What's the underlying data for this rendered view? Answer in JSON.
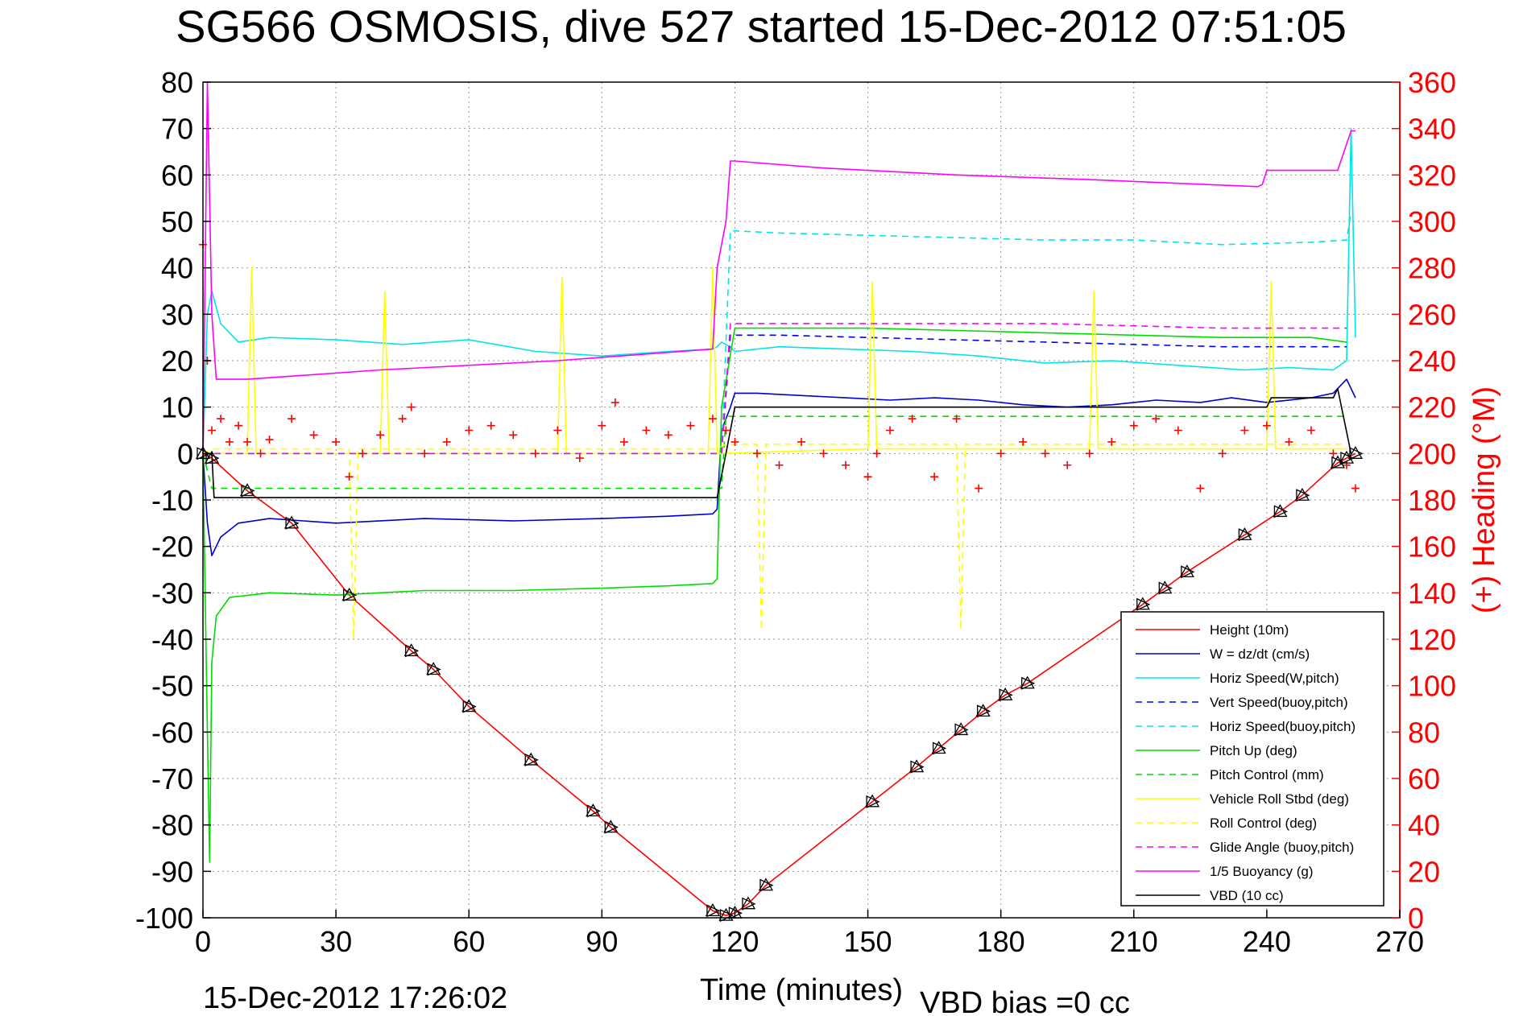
{
  "chart_data": {
    "type": "line",
    "title": "SG566 OSMOSIS, dive 527 started 15-Dec-2012 07:51:05",
    "xlabel": "Time (minutes)",
    "ylabel": "",
    "ylabel_right": "(+) Heading (°M)",
    "xlim": [
      0,
      270
    ],
    "ylim": [
      -100,
      80
    ],
    "ylim_right": [
      0,
      360
    ],
    "x_ticks": [
      "0",
      "30",
      "60",
      "90",
      "120",
      "150",
      "180",
      "210",
      "240",
      "270"
    ],
    "y_ticks": [
      "80",
      "70",
      "60",
      "50",
      "40",
      "30",
      "20",
      "10",
      "0",
      "-10",
      "-20",
      "-30",
      "-40",
      "-50",
      "-60",
      "-70",
      "-80",
      "-90",
      "-100"
    ],
    "y_ticks_right": [
      "360",
      "340",
      "320",
      "300",
      "280",
      "260",
      "240",
      "220",
      "200",
      "180",
      "160",
      "140",
      "120",
      "100",
      "80",
      "60",
      "40",
      "20",
      "0"
    ],
    "grid": true,
    "legend_position": "bottom-right",
    "footer_left": "15-Dec-2012 17:26:02",
    "footer_right": "VBD bias =0 cc",
    "series": [
      {
        "name": "Height (10m)",
        "color": "#ff0000",
        "style": "solid",
        "x": [
          0,
          2,
          10,
          20,
          33,
          47,
          52,
          60,
          74,
          88,
          92,
          115,
          118,
          120,
          123,
          127,
          151,
          161,
          166,
          171,
          176,
          181,
          186,
          212,
          217,
          222,
          235,
          243,
          248,
          256,
          258,
          260
        ],
        "y": [
          0,
          -1,
          -8,
          -15,
          -30.5,
          -42.5,
          -46.5,
          -54.5,
          -66,
          -77,
          -80.5,
          -98.5,
          -99.5,
          -99,
          -97,
          -93,
          -75,
          -67.5,
          -63.5,
          -59.5,
          -55.5,
          -52,
          -49.5,
          -32.5,
          -29,
          -25.5,
          -17.5,
          -12.5,
          -9,
          -2,
          -1,
          0
        ]
      },
      {
        "name": "W = dz/dt (cm/s)",
        "color": "#0000cc",
        "style": "solid",
        "x": [
          0,
          1,
          2,
          4,
          8,
          15,
          30,
          50,
          70,
          90,
          105,
          115,
          116,
          117,
          119,
          120,
          125,
          135,
          145,
          155,
          165,
          175,
          185,
          195,
          205,
          215,
          225,
          232,
          240,
          250,
          255,
          258,
          260
        ],
        "y": [
          0,
          -15,
          -22,
          -18,
          -15,
          -14,
          -15,
          -14,
          -14.5,
          -14,
          -13.5,
          -13,
          -12,
          5,
          10,
          13,
          13,
          12.5,
          12,
          11.5,
          12,
          11.5,
          10.5,
          10,
          10.5,
          11.5,
          11,
          12,
          11,
          12,
          13,
          16,
          12
        ]
      },
      {
        "name": "Horiz Speed(W,pitch)",
        "color": "#00e6e6",
        "style": "solid",
        "x": [
          0,
          1,
          2,
          4,
          8,
          15,
          30,
          45,
          60,
          75,
          90,
          105,
          115,
          116,
          117,
          119,
          120,
          130,
          145,
          160,
          175,
          190,
          205,
          220,
          235,
          245,
          255,
          258,
          259,
          260
        ],
        "y": [
          0,
          30,
          35,
          28,
          24,
          25,
          24.5,
          23.5,
          24.5,
          22,
          21,
          22,
          22.5,
          23,
          24,
          23,
          22,
          23,
          22.5,
          22,
          21,
          19.5,
          20,
          19,
          18,
          18.5,
          18,
          20,
          70,
          25
        ]
      },
      {
        "name": "Vert Speed(buoy,pitch)",
        "color": "#0000ff",
        "style": "dashed",
        "x": [
          0,
          2,
          117,
          119,
          130,
          150,
          170,
          190,
          210,
          230,
          250,
          258
        ],
        "y": [
          0,
          0,
          0,
          25.5,
          25.5,
          25,
          24.5,
          24,
          23.5,
          23,
          23,
          23
        ]
      },
      {
        "name": "Horiz Speed(buoy,pitch)",
        "color": "#00e6e6",
        "style": "dashed",
        "x": [
          0,
          2,
          117,
          119,
          130,
          150,
          170,
          190,
          210,
          230,
          250,
          258,
          259
        ],
        "y": [
          0,
          0,
          0,
          48,
          47.5,
          47,
          46.5,
          46,
          46,
          45,
          45.5,
          46,
          52
        ]
      },
      {
        "name": "Pitch Up (deg)",
        "color": "#00dd00",
        "style": "solid",
        "x": [
          0,
          1,
          1.5,
          2,
          3,
          6,
          15,
          30,
          50,
          70,
          90,
          105,
          115,
          116,
          117,
          120,
          130,
          150,
          170,
          190,
          210,
          230,
          250,
          258
        ],
        "y": [
          0,
          -60,
          -88,
          -45,
          -35,
          -31,
          -30,
          -30.5,
          -29.5,
          -29.5,
          -29,
          -28.5,
          -28,
          -27,
          10,
          27,
          27,
          27,
          26.5,
          26,
          25.5,
          25,
          25,
          24
        ]
      },
      {
        "name": "Pitch Control (mm)",
        "color": "#00dd00",
        "style": "dashed",
        "x": [
          0,
          2,
          117,
          118,
          258
        ],
        "y": [
          0,
          -7.5,
          -7.5,
          8,
          8
        ]
      },
      {
        "name": "Vehicle Roll Stbd (deg)",
        "color": "#ffff00",
        "style": "solid",
        "x": [
          0,
          2,
          10,
          11,
          12,
          40,
          41,
          42,
          80,
          81,
          82,
          114,
          115,
          116,
          150,
          151,
          152,
          200,
          201,
          202,
          240,
          241,
          242,
          258
        ],
        "y": [
          0,
          0,
          0,
          40,
          0,
          0,
          35,
          0,
          0,
          38,
          0,
          0,
          40,
          0,
          1,
          37,
          1,
          1,
          35,
          1,
          1,
          37,
          1,
          1
        ]
      },
      {
        "name": "Roll Control (deg)",
        "color": "#ffff00",
        "style": "dashed",
        "x": [
          0,
          2,
          33,
          34,
          35,
          116,
          118,
          125,
          126,
          127,
          170,
          171,
          172,
          258
        ],
        "y": [
          0,
          1,
          1,
          -40,
          1,
          1,
          2,
          2,
          -38,
          2,
          2,
          -38,
          2,
          2
        ]
      },
      {
        "name": "Glide Angle (buoy,pitch)",
        "color": "#ff00ff",
        "style": "dashed",
        "x": [
          0,
          2,
          117,
          119,
          150,
          190,
          230,
          258
        ],
        "y": [
          0,
          0,
          0,
          28,
          28,
          28,
          27,
          27
        ]
      },
      {
        "name": "1/5 Buoyancy (g)",
        "color": "#ff00ff",
        "style": "solid",
        "x": [
          0,
          1,
          2,
          3,
          10,
          40,
          80,
          115,
          116,
          118,
          119,
          120,
          140,
          170,
          200,
          238,
          239,
          240,
          255,
          256,
          259,
          260
        ],
        "y": [
          0,
          80,
          30,
          16,
          16,
          18,
          20,
          22.5,
          40,
          50,
          63,
          63,
          61.5,
          60,
          59,
          57.5,
          58,
          61,
          61,
          61,
          69.5,
          69.5
        ]
      },
      {
        "name": "VBD (10 cc)",
        "color": "#000000",
        "style": "solid",
        "x": [
          0,
          2,
          2.5,
          116,
          118,
          120,
          240,
          241,
          255,
          256,
          259
        ],
        "y": [
          0,
          0,
          -9.5,
          -9.5,
          0,
          10,
          10,
          12,
          12,
          14,
          0
        ]
      }
    ],
    "heading": {
      "name": "(+) Heading (°M)",
      "color": "#ff0000",
      "marker": "+",
      "x": [
        0,
        1,
        2,
        4,
        6,
        8,
        10,
        13,
        15,
        20,
        25,
        30,
        33,
        36,
        40,
        45,
        47,
        50,
        55,
        60,
        65,
        70,
        75,
        80,
        85,
        90,
        93,
        95,
        100,
        105,
        110,
        115,
        118,
        120,
        125,
        130,
        135,
        140,
        145,
        150,
        152,
        155,
        160,
        165,
        170,
        175,
        180,
        185,
        190,
        195,
        200,
        205,
        210,
        215,
        220,
        225,
        230,
        235,
        240,
        245,
        250,
        255,
        258,
        260
      ],
      "y": [
        290,
        240,
        210,
        215,
        205,
        212,
        205,
        200,
        206,
        215,
        208,
        205,
        190,
        200,
        208,
        215,
        220,
        200,
        205,
        210,
        212,
        208,
        200,
        210,
        198,
        212,
        222,
        205,
        210,
        208,
        212,
        215,
        210,
        205,
        200,
        195,
        205,
        200,
        195,
        190,
        200,
        210,
        215,
        190,
        215,
        185,
        200,
        205,
        200,
        195,
        200,
        205,
        212,
        215,
        210,
        185,
        200,
        210,
        212,
        205,
        210,
        200,
        195,
        185
      ]
    }
  }
}
